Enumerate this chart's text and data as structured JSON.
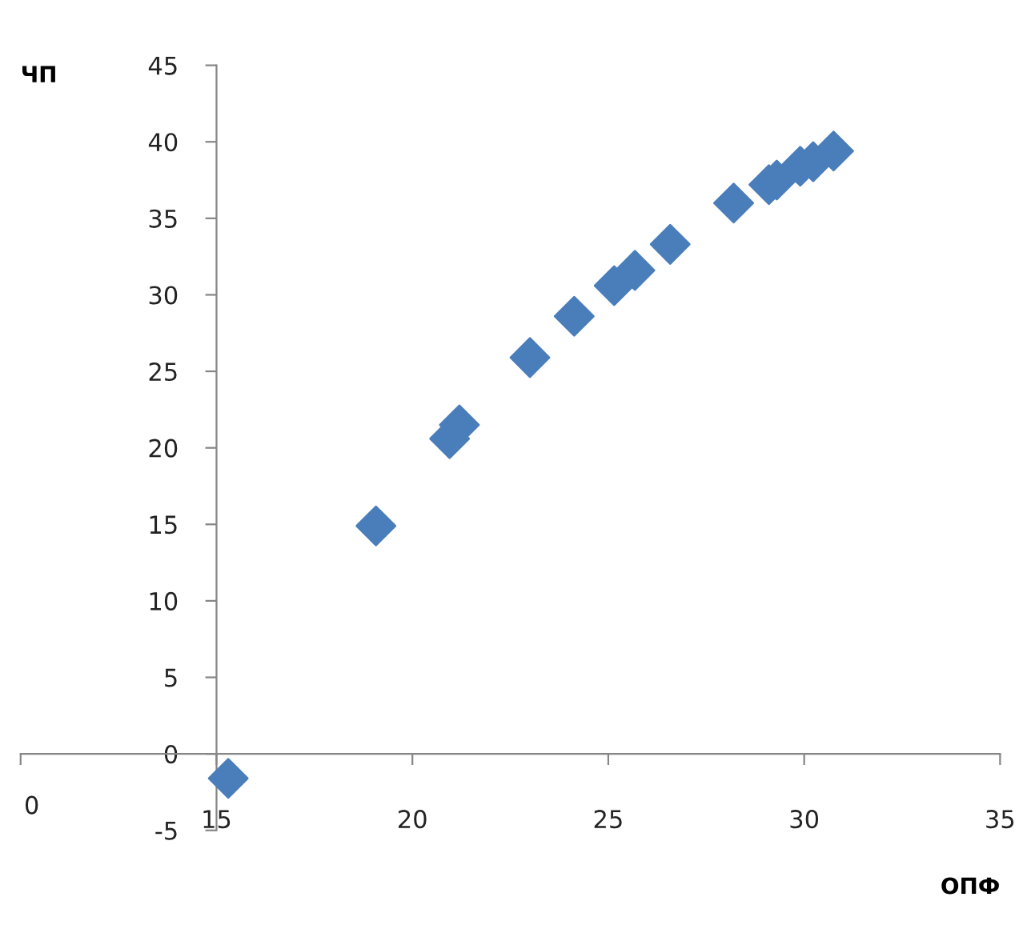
{
  "chart_data": {
    "type": "scatter",
    "xlabel": "ОПФ",
    "ylabel": "ЧП",
    "x": [
      15.3,
      19.07,
      20.95,
      21.2,
      23.0,
      24.13,
      25.15,
      25.68,
      26.58,
      28.2,
      29.1,
      29.3,
      29.9,
      30.23,
      30.75
    ],
    "series": [
      {
        "color": "#4a7ebb",
        "values": [
          -1.6,
          14.9,
          20.6,
          21.5,
          25.9,
          28.6,
          30.6,
          31.6,
          33.3,
          36.0,
          37.2,
          37.5,
          38.4,
          38.7,
          39.4
        ]
      }
    ],
    "xlim": [
      10,
      35
    ],
    "xticks": [
      {
        "value": 10,
        "label": null
      },
      15,
      20,
      25,
      30,
      35
    ],
    "annotations": [
      "0"
    ],
    "ylim": [
      -5,
      45
    ],
    "yticks": [
      -5,
      0,
      5,
      10,
      15,
      20,
      25,
      30,
      35,
      40,
      45
    ],
    "marker": "diamond",
    "grid": false,
    "legend": false
  }
}
